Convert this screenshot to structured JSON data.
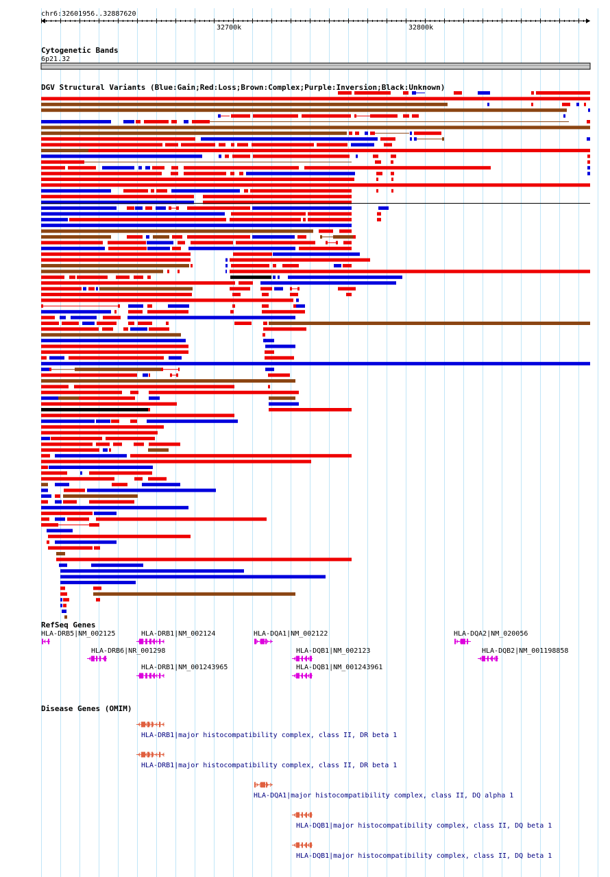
{
  "ruler": {
    "locus": "chr6:32601956..32887620",
    "ticks": [
      "32700k",
      "32800k"
    ]
  },
  "cytoband": {
    "title": "Cytogenetic Bands",
    "band": "6p21.32"
  },
  "dgv": {
    "title": "DGV Structural Variants (Blue:Gain;Red:Loss;Brown:Complex;Purple:Inversion;Black:Unknown)",
    "legend_colors": {
      "gain": "#0000dd",
      "loss": "#ee0000",
      "complex": "#8b4513",
      "inversion": "#800080",
      "unknown": "#000000"
    }
  },
  "refseq": {
    "title": "RefSeq Genes",
    "genes": [
      {
        "label": "HLA-DRB5|NM_002125",
        "strand": "-"
      },
      {
        "label": "HLA-DRB1|NM_002124",
        "strand": "-"
      },
      {
        "label": "HLA-DQA1|NM_002122",
        "strand": "+"
      },
      {
        "label": "HLA-DQA2|NM_020056",
        "strand": "+"
      },
      {
        "label": "HLA-DRB6|NR_001298",
        "strand": "-"
      },
      {
        "label": "HLA-DQB1|NM_002123",
        "strand": "-"
      },
      {
        "label": "HLA-DQB2|NM_001198858",
        "strand": "-"
      },
      {
        "label": "HLA-DRB1|NM_001243965",
        "strand": "-"
      },
      {
        "label": "HLA-DQB1|NM_001243961",
        "strand": "-"
      }
    ],
    "color": "#dd00dd"
  },
  "omim": {
    "title": "Disease Genes (OMIM)",
    "genes": [
      {
        "label": "HLA-DRB1|major histocompatibility complex, class II, DR beta 1",
        "strand": "-"
      },
      {
        "label": "HLA-DRB1|major histocompatibility complex, class II, DR beta 1",
        "strand": "-"
      },
      {
        "label": "HLA-DQA1|major histocompatibility complex, class II, DQ alpha 1",
        "strand": "+"
      },
      {
        "label": "HLA-DQB1|major histocompatibility complex, class II, DQ beta 1",
        "strand": "-"
      },
      {
        "label": "HLA-DQB1|major histocompatibility complex, class II, DQ beta 1",
        "strand": "-"
      }
    ],
    "color": "#e06040"
  }
}
